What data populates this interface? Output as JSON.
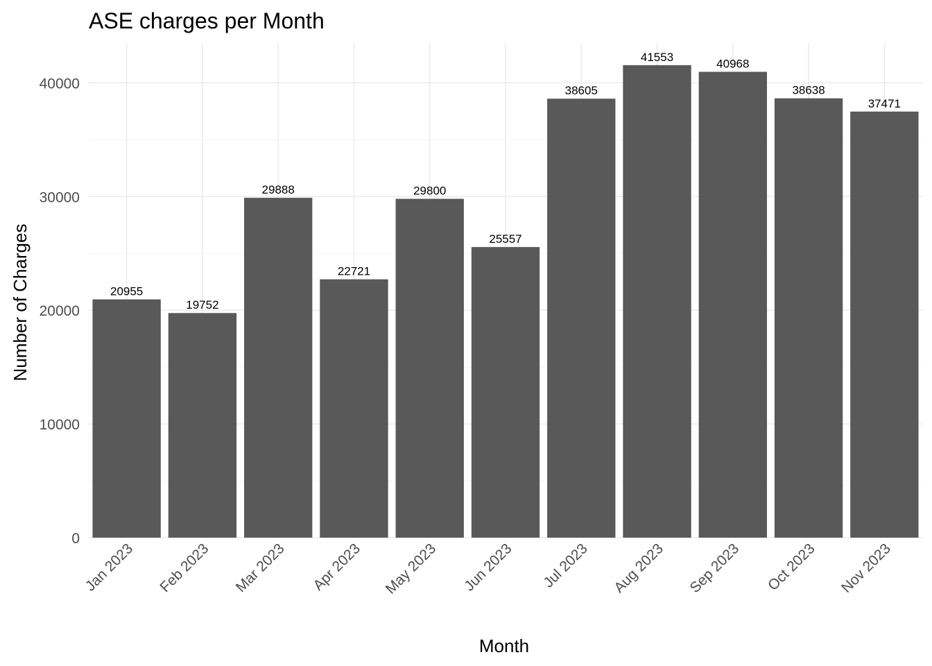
{
  "chart_data": {
    "type": "bar",
    "title": "ASE charges per Month",
    "xlabel": "Month",
    "ylabel": "Number of Charges",
    "categories": [
      "Jan 2023",
      "Feb 2023",
      "Mar 2023",
      "Apr 2023",
      "May 2023",
      "Jun 2023",
      "Jul 2023",
      "Aug 2023",
      "Sep 2023",
      "Oct 2023",
      "Nov 2023"
    ],
    "values": [
      20955,
      19752,
      29888,
      22721,
      29800,
      25557,
      38605,
      41553,
      40968,
      38638,
      37471
    ],
    "data_labels": [
      "20955",
      "19752",
      "29888",
      "22721",
      "29800",
      "25557",
      "38605",
      "41553",
      "40968",
      "38638",
      "37471"
    ],
    "y_ticks": [
      0,
      10000,
      20000,
      30000,
      40000
    ],
    "y_tick_labels": [
      "0",
      "10000",
      "20000",
      "30000",
      "40000"
    ],
    "ylim": [
      0,
      43500
    ],
    "grid": true,
    "legend": "none",
    "x_tick_rotation": -45,
    "colors": {
      "bar": "#595959",
      "grid_major": "#ebebeb",
      "grid_minor": "#f5f5f5",
      "tick_text": "#4d4d4d"
    }
  }
}
